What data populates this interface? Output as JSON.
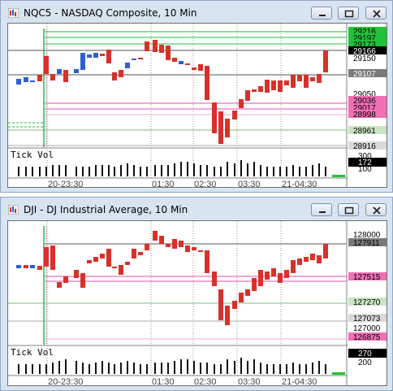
{
  "windows": [
    {
      "title": "NQC5 - NASDAQ Composite, 10 Min",
      "price_labels": [
        {
          "text": "29216",
          "bg": "#22c13a",
          "fg": "#000000"
        },
        {
          "text": "29197",
          "bg": "#22c13a",
          "fg": "#000000"
        },
        {
          "text": "29173",
          "bg": "#22c13a",
          "fg": "#000000"
        },
        {
          "text": "29166",
          "bg": "#000000",
          "fg": "#ffffff"
        },
        {
          "text": "29150",
          "bg": "",
          "fg": "#000000"
        },
        {
          "text": "29107",
          "bg": "#7a7a7a",
          "fg": "#ffffff"
        },
        {
          "text": "29050",
          "bg": "",
          "fg": "#000000"
        },
        {
          "text": "29036",
          "bg": "#f06fb5",
          "fg": "#000000"
        },
        {
          "text": "29017",
          "bg": "#f06fb5",
          "fg": "#000000"
        },
        {
          "text": "28998",
          "bg": "#f06fb5",
          "fg": "#000000"
        },
        {
          "text": "28950",
          "bg": "",
          "fg": "#000000"
        },
        {
          "text": "28961",
          "bg": "#c9e4c0",
          "fg": "#000000"
        },
        {
          "text": "28916",
          "bg": "#d9d9d9",
          "fg": "#000000"
        }
      ],
      "volume": {
        "label": "Tick Vol",
        "axis": [
          "300",
          "172",
          "100"
        ],
        "current": "172"
      },
      "time_labels": [
        "20-23:30",
        "01:30",
        "02:30",
        "03:30",
        "21-04:30"
      ]
    },
    {
      "title": "DJI - DJ Industrial Average, 10 Min",
      "price_labels": [
        {
          "text": "128000",
          "bg": "",
          "fg": "#000000"
        },
        {
          "text": "127911",
          "bg": "#7a7a7a",
          "fg": "#000000"
        },
        {
          "text": "127515",
          "bg": "#f06fb5",
          "fg": "#000000"
        },
        {
          "text": "127270",
          "bg": "#c9e4c0",
          "fg": "#000000"
        },
        {
          "text": "127073",
          "bg": "#d9d9d9",
          "fg": "#000000"
        },
        {
          "text": "127000",
          "bg": "",
          "fg": "#000000"
        },
        {
          "text": "126875",
          "bg": "#f06fb5",
          "fg": "#000000"
        }
      ],
      "volume": {
        "label": "Tick Vol",
        "axis": [
          "270",
          "200"
        ],
        "current": "270"
      },
      "time_labels": [
        "20-23:30",
        "01:30",
        "02:30",
        "03:30",
        "21-04:30"
      ]
    }
  ],
  "colors": {
    "up": "#2f5fd0",
    "down": "#d8312a",
    "support": "#22c13a",
    "resistance": "#e84fb0",
    "grid": "#909090"
  }
}
